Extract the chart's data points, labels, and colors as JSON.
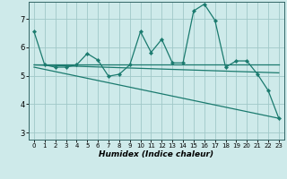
{
  "xlabel": "Humidex (Indice chaleur)",
  "xlim": [
    -0.5,
    23.5
  ],
  "ylim": [
    2.75,
    7.6
  ],
  "yticks": [
    3,
    4,
    5,
    6,
    7
  ],
  "xticks": [
    0,
    1,
    2,
    3,
    4,
    5,
    6,
    7,
    8,
    9,
    10,
    11,
    12,
    13,
    14,
    15,
    16,
    17,
    18,
    19,
    20,
    21,
    22,
    23
  ],
  "bg_color": "#ceeaea",
  "grid_color": "#a0c8c8",
  "line_color": "#1a7a6e",
  "series": [
    {
      "x": [
        0,
        1,
        2,
        3,
        4,
        5,
        6,
        7,
        8,
        9,
        10,
        11,
        12,
        13,
        14,
        15,
        16,
        17,
        18,
        19,
        20,
        21,
        22,
        23
      ],
      "y": [
        6.55,
        5.38,
        5.3,
        5.3,
        5.38,
        5.78,
        5.55,
        4.98,
        5.05,
        5.38,
        6.55,
        5.82,
        6.28,
        5.45,
        5.45,
        7.28,
        7.52,
        6.95,
        5.3,
        5.52,
        5.52,
        5.05,
        4.48,
        3.5
      ],
      "marker": true
    },
    {
      "x": [
        0,
        23
      ],
      "y": [
        5.38,
        5.38
      ],
      "marker": false
    },
    {
      "x": [
        0,
        23
      ],
      "y": [
        5.38,
        5.1
      ],
      "marker": false
    },
    {
      "x": [
        0,
        23
      ],
      "y": [
        5.3,
        3.5
      ],
      "marker": false
    }
  ]
}
